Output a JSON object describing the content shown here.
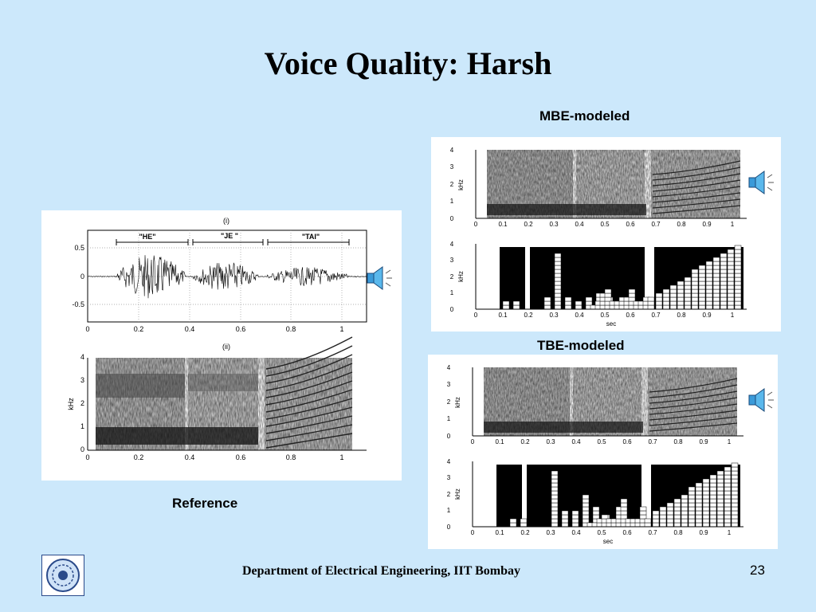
{
  "slide": {
    "title": "Voice Quality: Harsh",
    "page_number": "23",
    "footer": "Department of Electrical Engineering, IIT Bombay"
  },
  "captions": {
    "mbe": "MBE-modeled",
    "tbe": "TBE-modeled",
    "reference": "Reference"
  },
  "reference_figure": {
    "panel_i_label": "(i)",
    "panel_ii_label": "(ii)",
    "segment_labels": [
      "\"HE\"",
      "\"JE \"",
      "\"TAI\""
    ],
    "waveform_y_ticks": [
      "0.5",
      "0",
      "-0.5"
    ],
    "x_ticks": [
      "0",
      "0.2",
      "0.4",
      "0.6",
      "0.8",
      "1"
    ],
    "spectrogram_y_ticks": [
      "4",
      "3",
      "2",
      "1",
      "0"
    ],
    "y_label": "kHz"
  },
  "modeled_figure": {
    "spectrogram_y_ticks": [
      "4",
      "3",
      "2",
      "1",
      "0"
    ],
    "x_ticks": [
      "0",
      "0.1",
      "0.2",
      "0.3",
      "0.4",
      "0.5",
      "0.6",
      "0.7",
      "0.8",
      "0.9",
      "1"
    ],
    "y_label": "kHz",
    "x_label": "sec"
  },
  "icons": {
    "speaker": "speaker-icon",
    "logo": "iit-bombay-logo"
  }
}
